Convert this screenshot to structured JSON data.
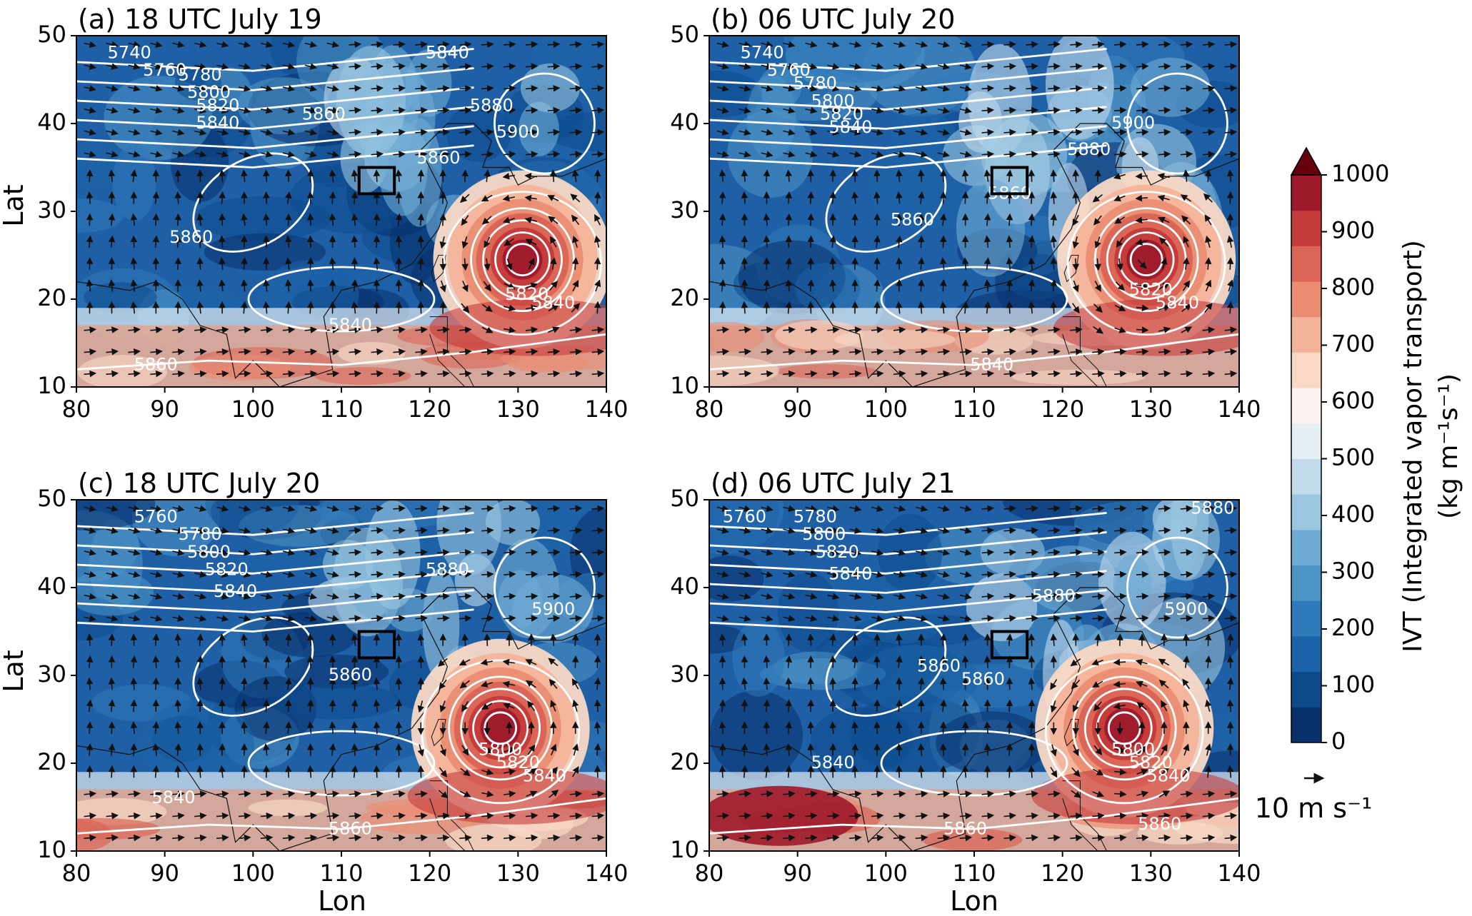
{
  "figure": {
    "axis_xlabel": "Lon",
    "axis_ylabel": "Lat",
    "x_ticks": [
      80,
      90,
      100,
      110,
      120,
      130,
      140
    ],
    "y_ticks": [
      10,
      20,
      30,
      40,
      50
    ],
    "x_range": [
      80,
      140
    ],
    "y_range": [
      10,
      50
    ],
    "target_box": {
      "lon": [
        112,
        116
      ],
      "lat": [
        32,
        35
      ]
    },
    "vector_reference": {
      "label": "10 m s⁻¹"
    }
  },
  "colorbar": {
    "label_line1": "IVT (Integrated vapor transport)",
    "label_line2": "(kg m⁻¹s⁻¹)",
    "ticks": [
      0,
      100,
      200,
      300,
      400,
      500,
      600,
      700,
      800,
      900,
      1000
    ],
    "range": [
      0,
      1000
    ],
    "extend": "max",
    "colors": [
      "#08306b",
      "#0d4a8c",
      "#1c62a8",
      "#2f79b8",
      "#4c93c6",
      "#6fabd3",
      "#9ac6e0",
      "#c2dbec",
      "#e4eef5",
      "#faf2ee",
      "#f9d9c6",
      "#f4b49a",
      "#ea8d73",
      "#da6455",
      "#c43a3a",
      "#9e1a2b",
      "#67000d"
    ]
  },
  "panels": [
    {
      "title": "(a) 18 UTC July 19",
      "contour_labels": [
        {
          "text": "5740",
          "lon": 86,
          "lat": 48
        },
        {
          "text": "5760",
          "lon": 90,
          "lat": 46
        },
        {
          "text": "5780",
          "lon": 94,
          "lat": 45.5
        },
        {
          "text": "5800",
          "lon": 95,
          "lat": 43.5
        },
        {
          "text": "5820",
          "lon": 96,
          "lat": 42
        },
        {
          "text": "5840",
          "lon": 96,
          "lat": 40
        },
        {
          "text": "5860",
          "lon": 108,
          "lat": 41
        },
        {
          "text": "5840",
          "lon": 122,
          "lat": 48
        },
        {
          "text": "5880",
          "lon": 127,
          "lat": 42
        },
        {
          "text": "5900",
          "lon": 130,
          "lat": 39
        },
        {
          "text": "5860",
          "lon": 121,
          "lat": 36
        },
        {
          "text": "5860",
          "lon": 93,
          "lat": 27
        },
        {
          "text": "5840",
          "lon": 111,
          "lat": 17
        },
        {
          "text": "5820",
          "lon": 131,
          "lat": 20.5
        },
        {
          "text": "5840",
          "lon": 134,
          "lat": 19.5
        },
        {
          "text": "5860",
          "lon": 89,
          "lat": 12.5
        }
      ],
      "cyclone": {
        "lon": 130.5,
        "lat": 24.5
      }
    },
    {
      "title": "(b) 06 UTC July 20",
      "contour_labels": [
        {
          "text": "5740",
          "lon": 86,
          "lat": 48
        },
        {
          "text": "5760",
          "lon": 89,
          "lat": 46
        },
        {
          "text": "5780",
          "lon": 92,
          "lat": 44.5
        },
        {
          "text": "5800",
          "lon": 94,
          "lat": 42.5
        },
        {
          "text": "5820",
          "lon": 95,
          "lat": 41
        },
        {
          "text": "5840",
          "lon": 96,
          "lat": 39.5
        },
        {
          "text": "5860",
          "lon": 103,
          "lat": 29
        },
        {
          "text": "5880",
          "lon": 123,
          "lat": 37
        },
        {
          "text": "5900",
          "lon": 128,
          "lat": 40
        },
        {
          "text": "5860",
          "lon": 114,
          "lat": 32
        },
        {
          "text": "5820",
          "lon": 130,
          "lat": 21
        },
        {
          "text": "5840",
          "lon": 133,
          "lat": 19.5
        },
        {
          "text": "5840",
          "lon": 112,
          "lat": 12.5
        }
      ],
      "cyclone": {
        "lon": 129.5,
        "lat": 24.5
      }
    },
    {
      "title": "(c) 18 UTC July 20",
      "contour_labels": [
        {
          "text": "5760",
          "lon": 89,
          "lat": 48
        },
        {
          "text": "5780",
          "lon": 94,
          "lat": 46
        },
        {
          "text": "5800",
          "lon": 95,
          "lat": 44
        },
        {
          "text": "5820",
          "lon": 97,
          "lat": 42
        },
        {
          "text": "5840",
          "lon": 98,
          "lat": 39.5
        },
        {
          "text": "5880",
          "lon": 122,
          "lat": 42
        },
        {
          "text": "5900",
          "lon": 134,
          "lat": 37.5
        },
        {
          "text": "5860",
          "lon": 111,
          "lat": 30
        },
        {
          "text": "5800",
          "lon": 128,
          "lat": 21.5
        },
        {
          "text": "5820",
          "lon": 130,
          "lat": 20
        },
        {
          "text": "5840",
          "lon": 133,
          "lat": 18.5
        },
        {
          "text": "5840",
          "lon": 91,
          "lat": 16
        },
        {
          "text": "5860",
          "lon": 111,
          "lat": 12.5
        }
      ],
      "cyclone": {
        "lon": 128,
        "lat": 24
      }
    },
    {
      "title": "(d) 06 UTC July 21",
      "contour_labels": [
        {
          "text": "5760",
          "lon": 84,
          "lat": 48
        },
        {
          "text": "5780",
          "lon": 92,
          "lat": 48
        },
        {
          "text": "5800",
          "lon": 93,
          "lat": 46
        },
        {
          "text": "5820",
          "lon": 94.5,
          "lat": 44
        },
        {
          "text": "5840",
          "lon": 96,
          "lat": 41.5
        },
        {
          "text": "5860",
          "lon": 106,
          "lat": 31
        },
        {
          "text": "5880",
          "lon": 137,
          "lat": 49
        },
        {
          "text": "5880",
          "lon": 119,
          "lat": 39
        },
        {
          "text": "5900",
          "lon": 134,
          "lat": 37.5
        },
        {
          "text": "5860",
          "lon": 111,
          "lat": 29.5
        },
        {
          "text": "5840",
          "lon": 94,
          "lat": 20
        },
        {
          "text": "5800",
          "lon": 128,
          "lat": 21.5
        },
        {
          "text": "5820",
          "lon": 130,
          "lat": 20
        },
        {
          "text": "5840",
          "lon": 132,
          "lat": 18.5
        },
        {
          "text": "5860",
          "lon": 131,
          "lat": 13
        },
        {
          "text": "5860",
          "lon": 109,
          "lat": 12.5
        }
      ],
      "cyclone": {
        "lon": 127,
        "lat": 24
      }
    }
  ]
}
